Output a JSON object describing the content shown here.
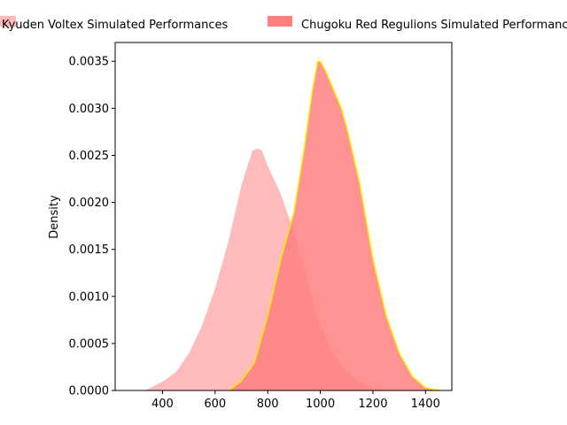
{
  "chart_data": {
    "type": "area",
    "title": "",
    "xlabel": "",
    "ylabel": "Density",
    "xlim": [
      220,
      1500
    ],
    "ylim": [
      0,
      0.0037
    ],
    "xticks": [
      400,
      600,
      800,
      1000,
      1200,
      1400
    ],
    "yticks": [
      0.0,
      0.0005,
      0.001,
      0.0015,
      0.002,
      0.0025,
      0.003,
      0.0035
    ],
    "xtick_labels": [
      "400",
      "600",
      "800",
      "1000",
      "1200",
      "1400"
    ],
    "ytick_labels": [
      "0.0000",
      "0.0005",
      "0.0010",
      "0.0015",
      "0.0020",
      "0.0025",
      "0.0030",
      "0.0035"
    ],
    "grid": false,
    "legend_position": "top",
    "series": [
      {
        "name": "Kyuden Voltex Simulated Performances",
        "fill": "#ffbbbb",
        "line": "#ffffff",
        "x": [
          330,
          400,
          450,
          500,
          550,
          600,
          650,
          700,
          740,
          760,
          780,
          800,
          850,
          900,
          950,
          1000,
          1050,
          1100,
          1150,
          1200,
          1250
        ],
        "y": [
          0.0,
          0.0001,
          0.0002,
          0.0004,
          0.0007,
          0.0011,
          0.0016,
          0.0022,
          0.00255,
          0.00258,
          0.00255,
          0.0024,
          0.0021,
          0.0017,
          0.0012,
          0.0007,
          0.0004,
          0.0002,
          0.0001,
          3e-05,
          0.0
        ]
      },
      {
        "name": "Chugoku Red Regulions Simulated Performances",
        "fill": "#ff8080",
        "line": "#ffee00",
        "x": [
          650,
          700,
          750,
          800,
          850,
          900,
          940,
          970,
          990,
          1000,
          1020,
          1050,
          1080,
          1100,
          1150,
          1200,
          1250,
          1300,
          1350,
          1400,
          1450
        ],
        "y": [
          0.0,
          0.0001,
          0.0003,
          0.0008,
          0.0014,
          0.0019,
          0.0026,
          0.0032,
          0.0035,
          0.0035,
          0.0034,
          0.0032,
          0.003,
          0.0028,
          0.0022,
          0.0014,
          0.0008,
          0.0004,
          0.00015,
          3e-05,
          0.0
        ]
      }
    ]
  }
}
